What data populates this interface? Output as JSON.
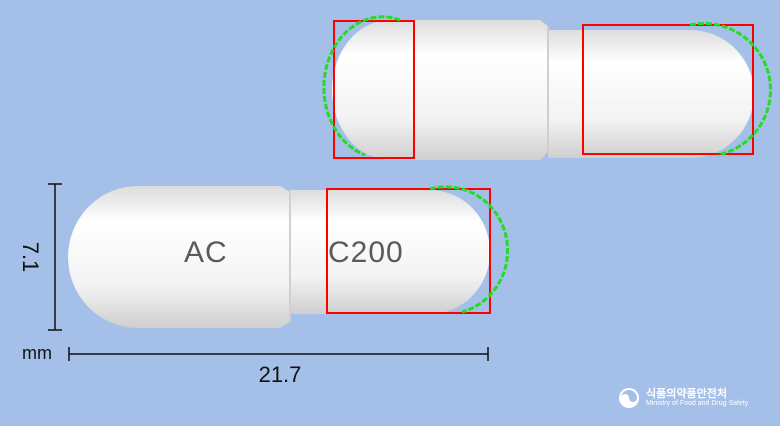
{
  "dimensions": {
    "length": "21.7",
    "width": "7.1",
    "unit": "mm"
  },
  "capsule": {
    "imprint_left": "AC",
    "imprint_right": "C200",
    "body_color": "#f2f2f2",
    "outline_color": "#ff0000",
    "edge_highlight_color": "#22dd22"
  },
  "watermark": {
    "korean": "식품의약품안전처",
    "english": "Ministry of Food and Drug Safety"
  }
}
